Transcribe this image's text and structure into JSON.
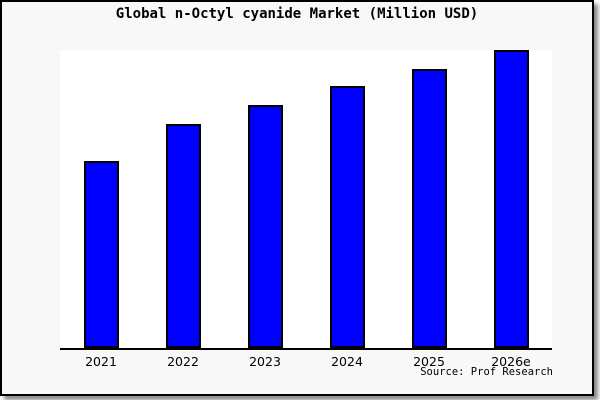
{
  "title": "Global n-Octyl cyanide Market (Million USD)",
  "source": "Source: Prof Research",
  "colors": {
    "bar_fill": "#0000FF",
    "bar_border": "#000000",
    "canvas_background": "#F8F8F8",
    "plot_background": "#FFFFFF",
    "axis": "#000000",
    "frame_border": "#000000"
  },
  "chart_data": {
    "type": "bar",
    "title": "Global n-Octyl cyanide Market (Million USD)",
    "categories": [
      "2021",
      "2022",
      "2023",
      "2024",
      "2025",
      "2026e"
    ],
    "values": [
      62.7,
      75.0,
      81.7,
      88.0,
      93.7,
      100.0
    ],
    "xlabel": "",
    "ylabel": "",
    "ylim": [
      0,
      100
    ],
    "y_axis_labels_shown": false,
    "grid": false,
    "legend": false,
    "bar_color": "#0000FF",
    "source": "Source: Prof Research"
  }
}
